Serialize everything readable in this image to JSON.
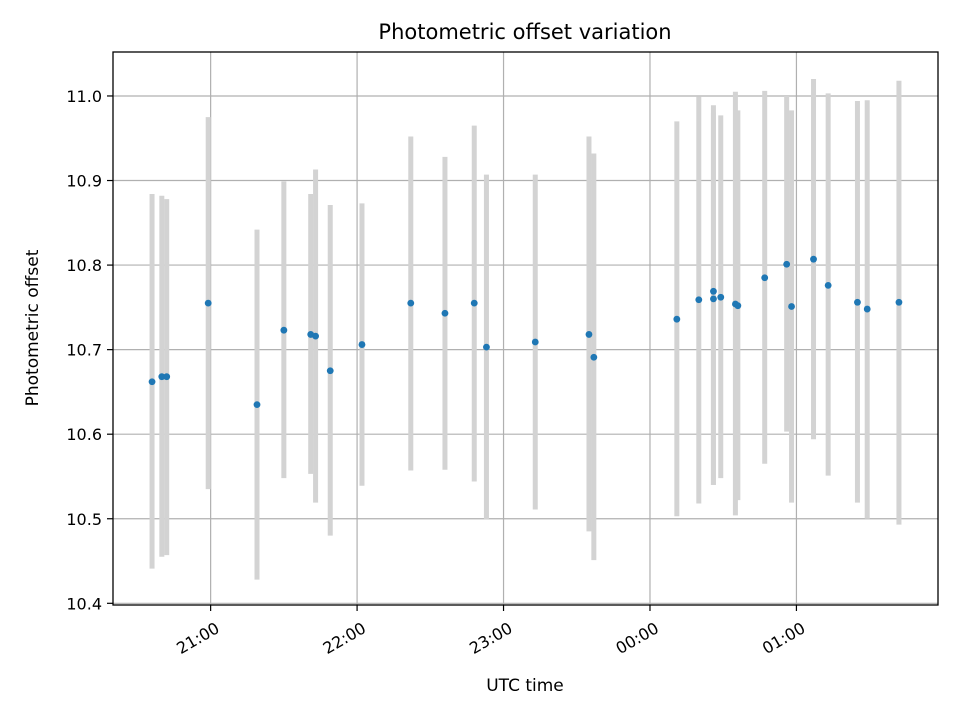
{
  "chart_data": {
    "type": "scatter",
    "title": "Photometric offset variation",
    "xlabel": "UTC time",
    "ylabel": "Photometric offset",
    "x_axis": {
      "kind": "time",
      "start": "20:20",
      "end": "01:58",
      "ticks": [
        {
          "time": "21:00",
          "label": "21:00"
        },
        {
          "time": "22:00",
          "label": "22:00"
        },
        {
          "time": "23:00",
          "label": "23:00"
        },
        {
          "time": "00:00",
          "label": "00:00"
        },
        {
          "time": "01:00",
          "label": "01:00"
        }
      ]
    },
    "ylim": [
      10.398,
      11.052
    ],
    "yticks": [
      10.4,
      10.5,
      10.6,
      10.7,
      10.8,
      10.9,
      11.0
    ],
    "ytick_labels": [
      "10.4",
      "10.5",
      "10.6",
      "10.7",
      "10.8",
      "10.9",
      "11.0"
    ],
    "grid": true,
    "colors": {
      "marker": "#1f77b4",
      "errorbar": "#d3d3d3",
      "grid": "#b0b0b0"
    },
    "points": [
      {
        "t": "20:36",
        "y": 10.662,
        "lo": 10.441,
        "hi": 10.884
      },
      {
        "t": "20:40",
        "y": 10.668,
        "lo": 10.455,
        "hi": 10.882
      },
      {
        "t": "20:42",
        "y": 10.668,
        "lo": 10.457,
        "hi": 10.878
      },
      {
        "t": "20:59",
        "y": 10.755,
        "lo": 10.535,
        "hi": 10.975
      },
      {
        "t": "21:19",
        "y": 10.635,
        "lo": 10.428,
        "hi": 10.842
      },
      {
        "t": "21:30",
        "y": 10.723,
        "lo": 10.548,
        "hi": 10.899
      },
      {
        "t": "21:41",
        "y": 10.718,
        "lo": 10.553,
        "hi": 10.884
      },
      {
        "t": "21:43",
        "y": 10.716,
        "lo": 10.519,
        "hi": 10.913
      },
      {
        "t": "21:49",
        "y": 10.675,
        "lo": 10.48,
        "hi": 10.871
      },
      {
        "t": "22:02",
        "y": 10.706,
        "lo": 10.539,
        "hi": 10.873
      },
      {
        "t": "22:22",
        "y": 10.755,
        "lo": 10.557,
        "hi": 10.952
      },
      {
        "t": "22:36",
        "y": 10.743,
        "lo": 10.558,
        "hi": 10.928
      },
      {
        "t": "22:48",
        "y": 10.755,
        "lo": 10.544,
        "hi": 10.965
      },
      {
        "t": "22:53",
        "y": 10.703,
        "lo": 10.499,
        "hi": 10.907
      },
      {
        "t": "23:13",
        "y": 10.709,
        "lo": 10.511,
        "hi": 10.907
      },
      {
        "t": "23:35",
        "y": 10.718,
        "lo": 10.485,
        "hi": 10.952
      },
      {
        "t": "23:37",
        "y": 10.691,
        "lo": 10.451,
        "hi": 10.932
      },
      {
        "t": "00:11",
        "y": 10.736,
        "lo": 10.503,
        "hi": 10.97
      },
      {
        "t": "00:20",
        "y": 10.759,
        "lo": 10.518,
        "hi": 10.999
      },
      {
        "t": "00:26",
        "y": 10.769,
        "lo": 10.54,
        "hi": 10.989
      },
      {
        "t": "00:26",
        "y": 10.76,
        "lo": 10.54,
        "hi": 10.98
      },
      {
        "t": "00:29",
        "y": 10.762,
        "lo": 10.548,
        "hi": 10.977
      },
      {
        "t": "00:35",
        "y": 10.754,
        "lo": 10.504,
        "hi": 11.005
      },
      {
        "t": "00:36",
        "y": 10.752,
        "lo": 10.522,
        "hi": 10.983
      },
      {
        "t": "00:47",
        "y": 10.785,
        "lo": 10.565,
        "hi": 11.006
      },
      {
        "t": "00:56",
        "y": 10.801,
        "lo": 10.603,
        "hi": 11.0
      },
      {
        "t": "00:58",
        "y": 10.751,
        "lo": 10.519,
        "hi": 10.983
      },
      {
        "t": "01:07",
        "y": 10.807,
        "lo": 10.594,
        "hi": 11.02
      },
      {
        "t": "01:13",
        "y": 10.776,
        "lo": 10.551,
        "hi": 11.003
      },
      {
        "t": "01:25",
        "y": 10.756,
        "lo": 10.519,
        "hi": 10.994
      },
      {
        "t": "01:29",
        "y": 10.748,
        "lo": 10.5,
        "hi": 10.995
      },
      {
        "t": "01:42",
        "y": 10.756,
        "lo": 10.493,
        "hi": 11.018
      }
    ]
  }
}
